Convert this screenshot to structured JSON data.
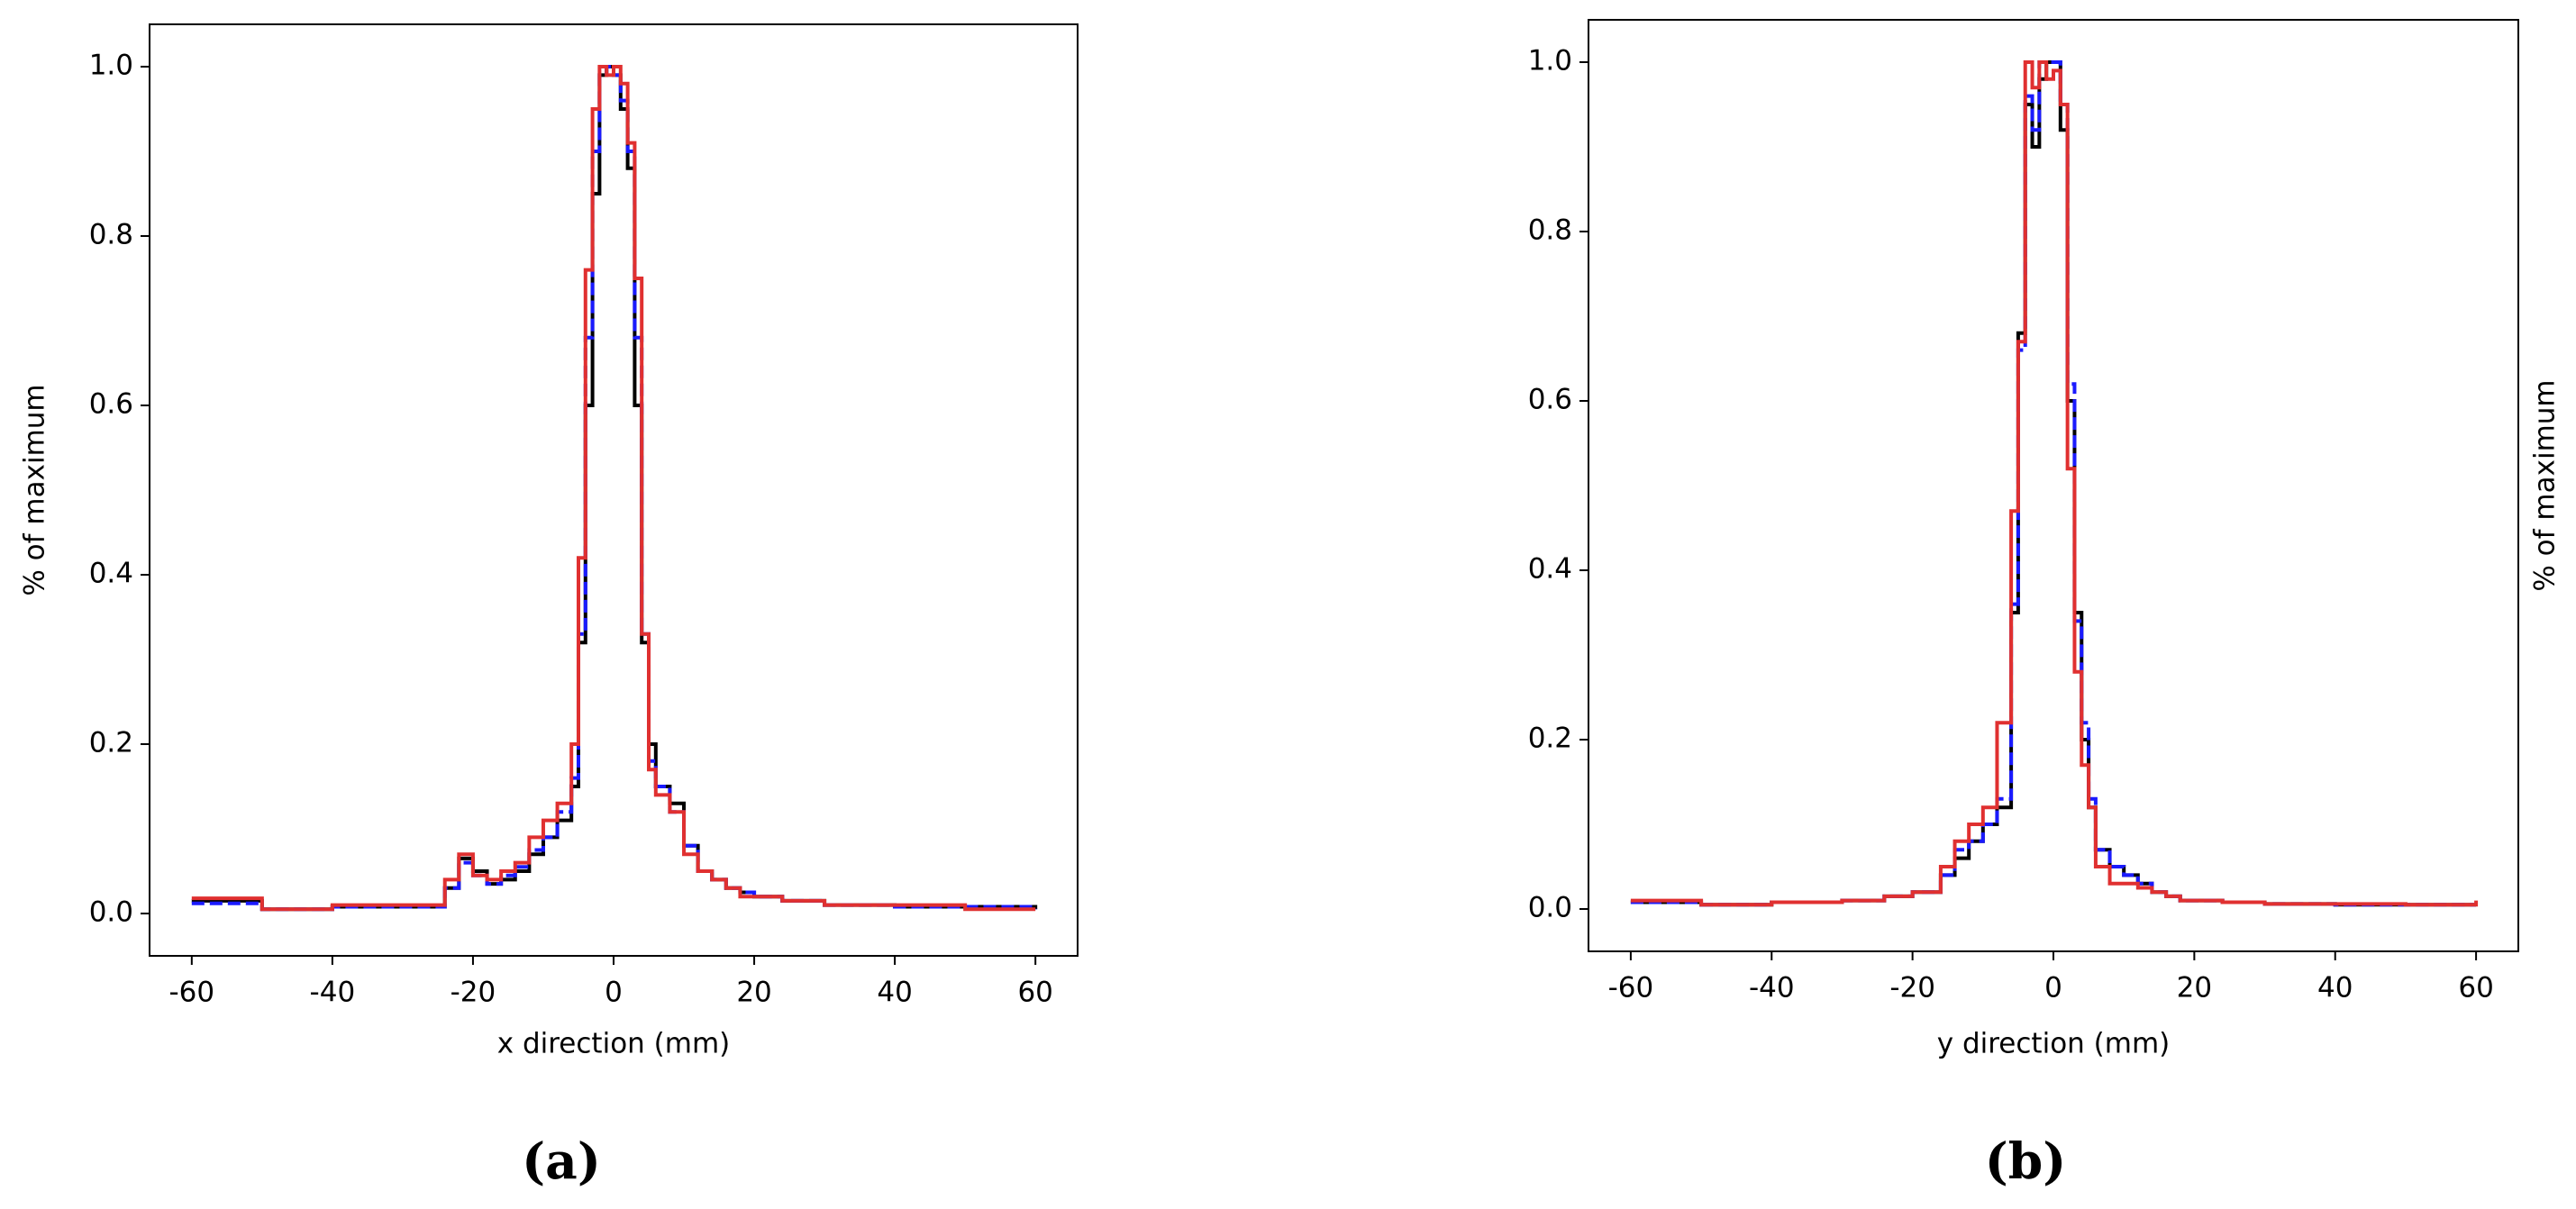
{
  "chart_data": [
    {
      "type": "step",
      "panel_label": "(a)",
      "xlabel": "x direction (mm)",
      "ylabel": "% of maximum",
      "ylabel_side": "left",
      "x": [
        -60,
        -50,
        -40,
        -30,
        -24,
        -22,
        -20,
        -18,
        -16,
        -14,
        -12,
        -10,
        -8,
        -6,
        -5,
        -4,
        -3,
        -2,
        -1,
        0,
        1,
        2,
        3,
        4,
        5,
        6,
        8,
        10,
        12,
        14,
        16,
        18,
        20,
        24,
        30,
        40,
        50,
        60
      ],
      "series": [
        {
          "color": "#000000",
          "linestyle": "solid",
          "values": [
            0.015,
            0.005,
            0.008,
            0.008,
            0.03,
            0.065,
            0.05,
            0.035,
            0.04,
            0.05,
            0.07,
            0.09,
            0.11,
            0.15,
            0.32,
            0.6,
            0.85,
            0.99,
            1.0,
            0.99,
            0.95,
            0.88,
            0.6,
            0.32,
            0.2,
            0.15,
            0.13,
            0.08,
            0.05,
            0.04,
            0.03,
            0.025,
            0.02,
            0.015,
            0.01,
            0.008,
            0.008,
            0.005
          ]
        },
        {
          "color": "#1a1aff",
          "linestyle": "dashed",
          "values": [
            0.012,
            0.005,
            0.008,
            0.008,
            0.03,
            0.06,
            0.045,
            0.035,
            0.045,
            0.055,
            0.075,
            0.09,
            0.12,
            0.16,
            0.33,
            0.68,
            0.9,
            0.99,
            1.0,
            0.99,
            0.96,
            0.9,
            0.68,
            0.33,
            0.18,
            0.15,
            0.12,
            0.08,
            0.05,
            0.04,
            0.03,
            0.025,
            0.02,
            0.015,
            0.01,
            0.008,
            0.008,
            0.005
          ]
        },
        {
          "color": "#e03030",
          "linestyle": "solid",
          "values": [
            0.018,
            0.005,
            0.01,
            0.01,
            0.04,
            0.07,
            0.045,
            0.04,
            0.05,
            0.06,
            0.09,
            0.11,
            0.13,
            0.2,
            0.42,
            0.76,
            0.95,
            1.0,
            0.99,
            1.0,
            0.98,
            0.91,
            0.75,
            0.33,
            0.17,
            0.14,
            0.12,
            0.07,
            0.05,
            0.04,
            0.03,
            0.02,
            0.02,
            0.015,
            0.01,
            0.01,
            0.005,
            0.005
          ]
        }
      ],
      "xlim": [
        -66,
        66
      ],
      "ylim": [
        -0.05,
        1.05
      ],
      "xticks": [
        -60,
        -40,
        -20,
        0,
        20,
        40,
        60
      ],
      "yticks": [
        {
          "value": 0,
          "label": "0.0"
        },
        {
          "value": 0.2,
          "label": "0.2"
        },
        {
          "value": 0.4,
          "label": "0.4"
        },
        {
          "value": 0.6,
          "label": "0.6"
        },
        {
          "value": 0.8,
          "label": "0.8"
        },
        {
          "value": 1,
          "label": "1.0"
        }
      ]
    },
    {
      "type": "step",
      "panel_label": "(b)",
      "xlabel": "y direction (mm)",
      "ylabel": "% of maximum",
      "ylabel_side": "right",
      "x": [
        -60,
        -50,
        -40,
        -30,
        -24,
        -20,
        -16,
        -14,
        -12,
        -10,
        -8,
        -6,
        -5,
        -4,
        -3,
        -2,
        -1,
        0,
        1,
        2,
        3,
        4,
        5,
        6,
        8,
        10,
        12,
        14,
        16,
        18,
        20,
        24,
        30,
        40,
        50,
        60
      ],
      "series": [
        {
          "color": "#000000",
          "linestyle": "solid",
          "values": [
            0.008,
            0.005,
            0.008,
            0.01,
            0.015,
            0.02,
            0.04,
            0.06,
            0.08,
            0.1,
            0.12,
            0.35,
            0.68,
            0.95,
            0.9,
            0.98,
            1.0,
            1.0,
            0.92,
            0.6,
            0.35,
            0.2,
            0.12,
            0.07,
            0.05,
            0.04,
            0.03,
            0.02,
            0.015,
            0.01,
            0.01,
            0.008,
            0.006,
            0.005,
            0.005,
            0.005
          ]
        },
        {
          "color": "#1a1aff",
          "linestyle": "dashed",
          "values": [
            0.008,
            0.005,
            0.008,
            0.01,
            0.015,
            0.02,
            0.04,
            0.07,
            0.08,
            0.1,
            0.13,
            0.36,
            0.66,
            0.96,
            0.92,
            1.0,
            1.0,
            1.0,
            0.95,
            0.62,
            0.34,
            0.22,
            0.13,
            0.07,
            0.05,
            0.04,
            0.03,
            0.02,
            0.015,
            0.01,
            0.01,
            0.008,
            0.006,
            0.005,
            0.005,
            0.005
          ]
        },
        {
          "color": "#e03030",
          "linestyle": "solid",
          "values": [
            0.01,
            0.005,
            0.008,
            0.01,
            0.015,
            0.02,
            0.05,
            0.08,
            0.1,
            0.12,
            0.22,
            0.47,
            0.67,
            1.0,
            0.97,
            1.0,
            0.98,
            0.99,
            0.95,
            0.52,
            0.28,
            0.17,
            0.12,
            0.05,
            0.03,
            0.03,
            0.025,
            0.02,
            0.015,
            0.01,
            0.01,
            0.008,
            0.006,
            0.006,
            0.005,
            0.01
          ]
        }
      ],
      "xlim": [
        -66,
        66
      ],
      "ylim": [
        -0.05,
        1.05
      ],
      "xticks": [
        -60,
        -40,
        -20,
        0,
        20,
        40,
        60
      ],
      "yticks": [
        {
          "value": 0,
          "label": "0.0"
        },
        {
          "value": 0.2,
          "label": "0.2"
        },
        {
          "value": 0.4,
          "label": "0.4"
        },
        {
          "value": 0.6,
          "label": "0.6"
        },
        {
          "value": 0.8,
          "label": "0.8"
        },
        {
          "value": 1,
          "label": "1.0"
        }
      ]
    }
  ]
}
